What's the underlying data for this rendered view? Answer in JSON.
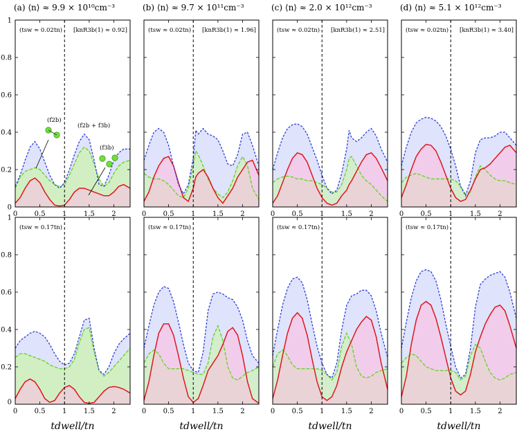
{
  "colors": {
    "blue_line": "#2b3fd6",
    "blue_fill": "#dfe3fb",
    "red_line": "#e0141c",
    "red_fill": "#ead3d6",
    "green_line": "#6ad32c",
    "green_fill": "#d2efc4",
    "pink_fill": "#f1cdeb"
  },
  "annotations": {
    "f2b": "(f2b)",
    "f2b_f3b": "(f2b + f3b)",
    "f3b": "(f3b)"
  },
  "chart_data": {
    "type": "line",
    "xlabel": "tdwell/tn",
    "xlim": [
      0,
      2.33
    ],
    "ylim": [
      0,
      1
    ],
    "xticks": [
      "0",
      "0.5",
      "1",
      "1.5",
      "2"
    ],
    "xtick_values": [
      0,
      0.5,
      1,
      1.5,
      2
    ],
    "yticks": [
      "0",
      "0.2",
      "0.4",
      "0.6",
      "0.8",
      "1"
    ],
    "ytick_values": [
      0,
      0.2,
      0.4,
      0.6,
      0.8,
      1
    ],
    "vline_x": 1,
    "panels": [
      {
        "title": "(a) ⟨n⟩ ≈ 9.9 × 10¹⁰cm⁻³",
        "rows": [
          {
            "tsw": "(tsw ≈ 0.02tn)",
            "kR": "[knR3b(1) ≈ 0.92]",
            "fill_mode": "green",
            "x": [
              0,
              0.1,
              0.2,
              0.3,
              0.4,
              0.5,
              0.6,
              0.7,
              0.8,
              0.9,
              1.0,
              1.1,
              1.2,
              1.3,
              1.4,
              1.5,
              1.6,
              1.7,
              1.8,
              1.9,
              2.0,
              2.1,
              2.2,
              2.33
            ],
            "total": [
              0.11,
              0.17,
              0.25,
              0.32,
              0.35,
              0.31,
              0.24,
              0.17,
              0.12,
              0.1,
              0.13,
              0.2,
              0.28,
              0.35,
              0.39,
              0.36,
              0.25,
              0.12,
              0.11,
              0.17,
              0.25,
              0.29,
              0.31,
              0.31
            ],
            "f2b": [
              0.1,
              0.16,
              0.19,
              0.2,
              0.21,
              0.2,
              0.17,
              0.14,
              0.12,
              0.11,
              0.12,
              0.17,
              0.23,
              0.29,
              0.32,
              0.3,
              0.23,
              0.15,
              0.11,
              0.13,
              0.18,
              0.22,
              0.24,
              0.25
            ],
            "f3b": [
              0.02,
              0.05,
              0.1,
              0.14,
              0.155,
              0.13,
              0.08,
              0.04,
              0.01,
              0.005,
              0.01,
              0.04,
              0.08,
              0.1,
              0.1,
              0.09,
              0.08,
              0.07,
              0.06,
              0.06,
              0.08,
              0.11,
              0.12,
              0.1
            ]
          },
          {
            "tsw": "(tsw ≈ 0.17tn)",
            "fill_mode": "green",
            "x": [
              0,
              0.1,
              0.2,
              0.3,
              0.4,
              0.5,
              0.6,
              0.7,
              0.8,
              0.9,
              1.0,
              1.1,
              1.2,
              1.3,
              1.4,
              1.5,
              1.6,
              1.7,
              1.8,
              1.9,
              2.0,
              2.1,
              2.2,
              2.33
            ],
            "total": [
              0.3,
              0.34,
              0.36,
              0.38,
              0.39,
              0.38,
              0.36,
              0.32,
              0.27,
              0.23,
              0.21,
              0.22,
              0.27,
              0.36,
              0.45,
              0.46,
              0.3,
              0.18,
              0.16,
              0.2,
              0.27,
              0.32,
              0.35,
              0.38
            ],
            "f2b": [
              0.25,
              0.27,
              0.27,
              0.26,
              0.25,
              0.24,
              0.23,
              0.21,
              0.2,
              0.19,
              0.19,
              0.2,
              0.24,
              0.33,
              0.4,
              0.41,
              0.28,
              0.18,
              0.15,
              0.17,
              0.2,
              0.23,
              0.26,
              0.3
            ],
            "f3b": [
              0.03,
              0.08,
              0.12,
              0.135,
              0.12,
              0.08,
              0.03,
              0.01,
              0.02,
              0.06,
              0.09,
              0.1,
              0.08,
              0.04,
              0.01,
              0.005,
              0.01,
              0.04,
              0.07,
              0.09,
              0.095,
              0.09,
              0.08,
              0.06
            ]
          }
        ]
      },
      {
        "title": "(b) ⟨n⟩ ≈ 9.7 × 10¹¹cm⁻³",
        "rows": [
          {
            "tsw": "(tsw ≈ 0.02tn)",
            "kR": "[knR3b(1) ≈ 1.96]",
            "fill_mode": "pink",
            "x": [
              0,
              0.1,
              0.2,
              0.3,
              0.4,
              0.5,
              0.6,
              0.7,
              0.8,
              0.9,
              1.0,
              1.05,
              1.1,
              1.2,
              1.3,
              1.4,
              1.5,
              1.6,
              1.7,
              1.8,
              1.9,
              2.0,
              2.1,
              2.2,
              2.33
            ],
            "total": [
              0.25,
              0.33,
              0.4,
              0.42,
              0.4,
              0.33,
              0.22,
              0.12,
              0.07,
              0.12,
              0.26,
              0.41,
              0.39,
              0.42,
              0.39,
              0.38,
              0.36,
              0.3,
              0.23,
              0.22,
              0.28,
              0.39,
              0.4,
              0.33,
              0.22
            ],
            "f2b": [
              0.18,
              0.16,
              0.15,
              0.15,
              0.14,
              0.12,
              0.09,
              0.06,
              0.05,
              0.1,
              0.22,
              0.3,
              0.28,
              0.22,
              0.15,
              0.1,
              0.07,
              0.05,
              0.08,
              0.14,
              0.22,
              0.27,
              0.22,
              0.1,
              0.04
            ],
            "f3b": [
              0.03,
              0.08,
              0.16,
              0.22,
              0.26,
              0.27,
              0.22,
              0.13,
              0.05,
              0.03,
              0.1,
              0.16,
              0.18,
              0.2,
              0.16,
              0.1,
              0.05,
              0.02,
              0.06,
              0.1,
              0.16,
              0.2,
              0.24,
              0.25,
              0.17
            ]
          },
          {
            "tsw": "(tsw ≈ 0.17tn)",
            "fill_mode": "pink",
            "x": [
              0,
              0.1,
              0.2,
              0.3,
              0.4,
              0.5,
              0.6,
              0.7,
              0.8,
              0.9,
              1.0,
              1.1,
              1.2,
              1.3,
              1.4,
              1.5,
              1.6,
              1.7,
              1.8,
              1.9,
              2.0,
              2.1,
              2.2,
              2.33
            ],
            "total": [
              0.3,
              0.42,
              0.53,
              0.6,
              0.63,
              0.62,
              0.55,
              0.44,
              0.32,
              0.22,
              0.18,
              0.17,
              0.28,
              0.5,
              0.59,
              0.6,
              0.59,
              0.57,
              0.56,
              0.52,
              0.45,
              0.34,
              0.26,
              0.22
            ],
            "f2b": [
              0.22,
              0.27,
              0.29,
              0.27,
              0.22,
              0.19,
              0.19,
              0.19,
              0.19,
              0.18,
              0.17,
              0.16,
              0.16,
              0.22,
              0.36,
              0.42,
              0.34,
              0.2,
              0.14,
              0.13,
              0.15,
              0.17,
              0.18,
              0.2
            ],
            "f3b": [
              0.02,
              0.12,
              0.26,
              0.38,
              0.43,
              0.43,
              0.37,
              0.26,
              0.14,
              0.04,
              0.01,
              0.03,
              0.1,
              0.18,
              0.22,
              0.26,
              0.32,
              0.39,
              0.41,
              0.37,
              0.26,
              0.12,
              0.03,
              0.005
            ]
          }
        ]
      },
      {
        "title": "(c) ⟨n⟩ ≈ 2.0 × 10¹²cm⁻³",
        "rows": [
          {
            "tsw": "(tsw ≈ 0.02tn)",
            "kR": "[knR3b(1) ≈ 2.51]",
            "fill_mode": "pink",
            "x": [
              0,
              0.1,
              0.2,
              0.3,
              0.4,
              0.5,
              0.6,
              0.7,
              0.8,
              0.9,
              1.0,
              1.1,
              1.2,
              1.3,
              1.4,
              1.5,
              1.55,
              1.6,
              1.7,
              1.8,
              1.9,
              2.0,
              2.1,
              2.2,
              2.33
            ],
            "total": [
              0.2,
              0.29,
              0.37,
              0.42,
              0.44,
              0.445,
              0.43,
              0.39,
              0.32,
              0.25,
              0.17,
              0.1,
              0.07,
              0.09,
              0.18,
              0.31,
              0.41,
              0.37,
              0.35,
              0.37,
              0.4,
              0.42,
              0.38,
              0.31,
              0.24
            ],
            "f2b": [
              0.13,
              0.15,
              0.16,
              0.165,
              0.16,
              0.15,
              0.15,
              0.14,
              0.14,
              0.13,
              0.12,
              0.1,
              0.08,
              0.08,
              0.12,
              0.2,
              0.26,
              0.27,
              0.22,
              0.17,
              0.14,
              0.12,
              0.09,
              0.06,
              0.03
            ],
            "f3b": [
              0.02,
              0.06,
              0.13,
              0.2,
              0.26,
              0.29,
              0.28,
              0.24,
              0.17,
              0.1,
              0.05,
              0.02,
              0.01,
              0.02,
              0.06,
              0.09,
              0.12,
              0.14,
              0.19,
              0.24,
              0.28,
              0.29,
              0.26,
              0.21,
              0.14
            ]
          },
          {
            "tsw": "(tsw ≈ 0.17tn)",
            "fill_mode": "pink",
            "x": [
              0,
              0.1,
              0.2,
              0.3,
              0.4,
              0.5,
              0.6,
              0.7,
              0.8,
              0.9,
              1.0,
              1.1,
              1.2,
              1.3,
              1.4,
              1.5,
              1.6,
              1.7,
              1.8,
              1.9,
              2.0,
              2.1,
              2.2,
              2.33
            ],
            "total": [
              0.26,
              0.4,
              0.53,
              0.62,
              0.67,
              0.68,
              0.65,
              0.56,
              0.43,
              0.31,
              0.22,
              0.16,
              0.14,
              0.22,
              0.4,
              0.53,
              0.58,
              0.59,
              0.61,
              0.61,
              0.58,
              0.5,
              0.38,
              0.25
            ],
            "f2b": [
              0.2,
              0.27,
              0.29,
              0.26,
              0.21,
              0.19,
              0.19,
              0.19,
              0.19,
              0.19,
              0.18,
              0.16,
              0.13,
              0.17,
              0.31,
              0.38,
              0.32,
              0.2,
              0.15,
              0.14,
              0.15,
              0.17,
              0.18,
              0.19
            ],
            "f3b": [
              0.03,
              0.13,
              0.26,
              0.38,
              0.46,
              0.49,
              0.46,
              0.37,
              0.24,
              0.12,
              0.04,
              0.02,
              0.04,
              0.1,
              0.2,
              0.28,
              0.34,
              0.4,
              0.44,
              0.47,
              0.45,
              0.36,
              0.22,
              0.08
            ]
          }
        ]
      },
      {
        "title": "(d) ⟨n⟩ ≈ 5.1 × 10¹²cm⁻³",
        "rows": [
          {
            "tsw": "(tsw ≈ 0.02tn)",
            "kR": "[knR3b(1) ≈ 3.40]",
            "fill_mode": "pink",
            "x": [
              0,
              0.1,
              0.2,
              0.3,
              0.4,
              0.5,
              0.6,
              0.7,
              0.8,
              0.9,
              1.0,
              1.1,
              1.2,
              1.3,
              1.4,
              1.5,
              1.6,
              1.7,
              1.8,
              1.9,
              2.0,
              2.1,
              2.2,
              2.33
            ],
            "total": [
              0.22,
              0.32,
              0.4,
              0.45,
              0.47,
              0.48,
              0.475,
              0.46,
              0.43,
              0.38,
              0.31,
              0.22,
              0.11,
              0.06,
              0.14,
              0.29,
              0.36,
              0.37,
              0.37,
              0.38,
              0.4,
              0.4,
              0.37,
              0.33
            ],
            "f2b": [
              0.13,
              0.16,
              0.17,
              0.18,
              0.17,
              0.16,
              0.15,
              0.15,
              0.15,
              0.15,
              0.15,
              0.14,
              0.11,
              0.07,
              0.08,
              0.16,
              0.22,
              0.2,
              0.17,
              0.15,
              0.14,
              0.14,
              0.13,
              0.12
            ],
            "f3b": [
              0.05,
              0.12,
              0.2,
              0.27,
              0.31,
              0.335,
              0.33,
              0.3,
              0.24,
              0.17,
              0.1,
              0.05,
              0.03,
              0.04,
              0.09,
              0.15,
              0.2,
              0.21,
              0.23,
              0.26,
              0.29,
              0.32,
              0.33,
              0.29
            ]
          },
          {
            "tsw": "(tsw ≈ 0.17tn)",
            "fill_mode": "pink",
            "x": [
              0,
              0.1,
              0.2,
              0.3,
              0.4,
              0.5,
              0.6,
              0.7,
              0.8,
              0.9,
              1.0,
              1.1,
              1.2,
              1.3,
              1.4,
              1.5,
              1.6,
              1.7,
              1.8,
              1.9,
              2.0,
              2.1,
              2.2,
              2.33
            ],
            "total": [
              0.3,
              0.44,
              0.57,
              0.66,
              0.71,
              0.72,
              0.71,
              0.66,
              0.56,
              0.43,
              0.31,
              0.2,
              0.14,
              0.16,
              0.3,
              0.52,
              0.64,
              0.67,
              0.69,
              0.7,
              0.71,
              0.68,
              0.6,
              0.46
            ],
            "f2b": [
              0.22,
              0.25,
              0.27,
              0.26,
              0.23,
              0.2,
              0.19,
              0.18,
              0.18,
              0.18,
              0.18,
              0.17,
              0.13,
              0.15,
              0.26,
              0.32,
              0.3,
              0.23,
              0.17,
              0.14,
              0.13,
              0.14,
              0.16,
              0.17
            ],
            "f3b": [
              0.04,
              0.15,
              0.32,
              0.45,
              0.53,
              0.55,
              0.53,
              0.46,
              0.36,
              0.25,
              0.14,
              0.07,
              0.05,
              0.07,
              0.16,
              0.28,
              0.36,
              0.43,
              0.48,
              0.52,
              0.53,
              0.5,
              0.42,
              0.3
            ]
          }
        ]
      }
    ]
  }
}
